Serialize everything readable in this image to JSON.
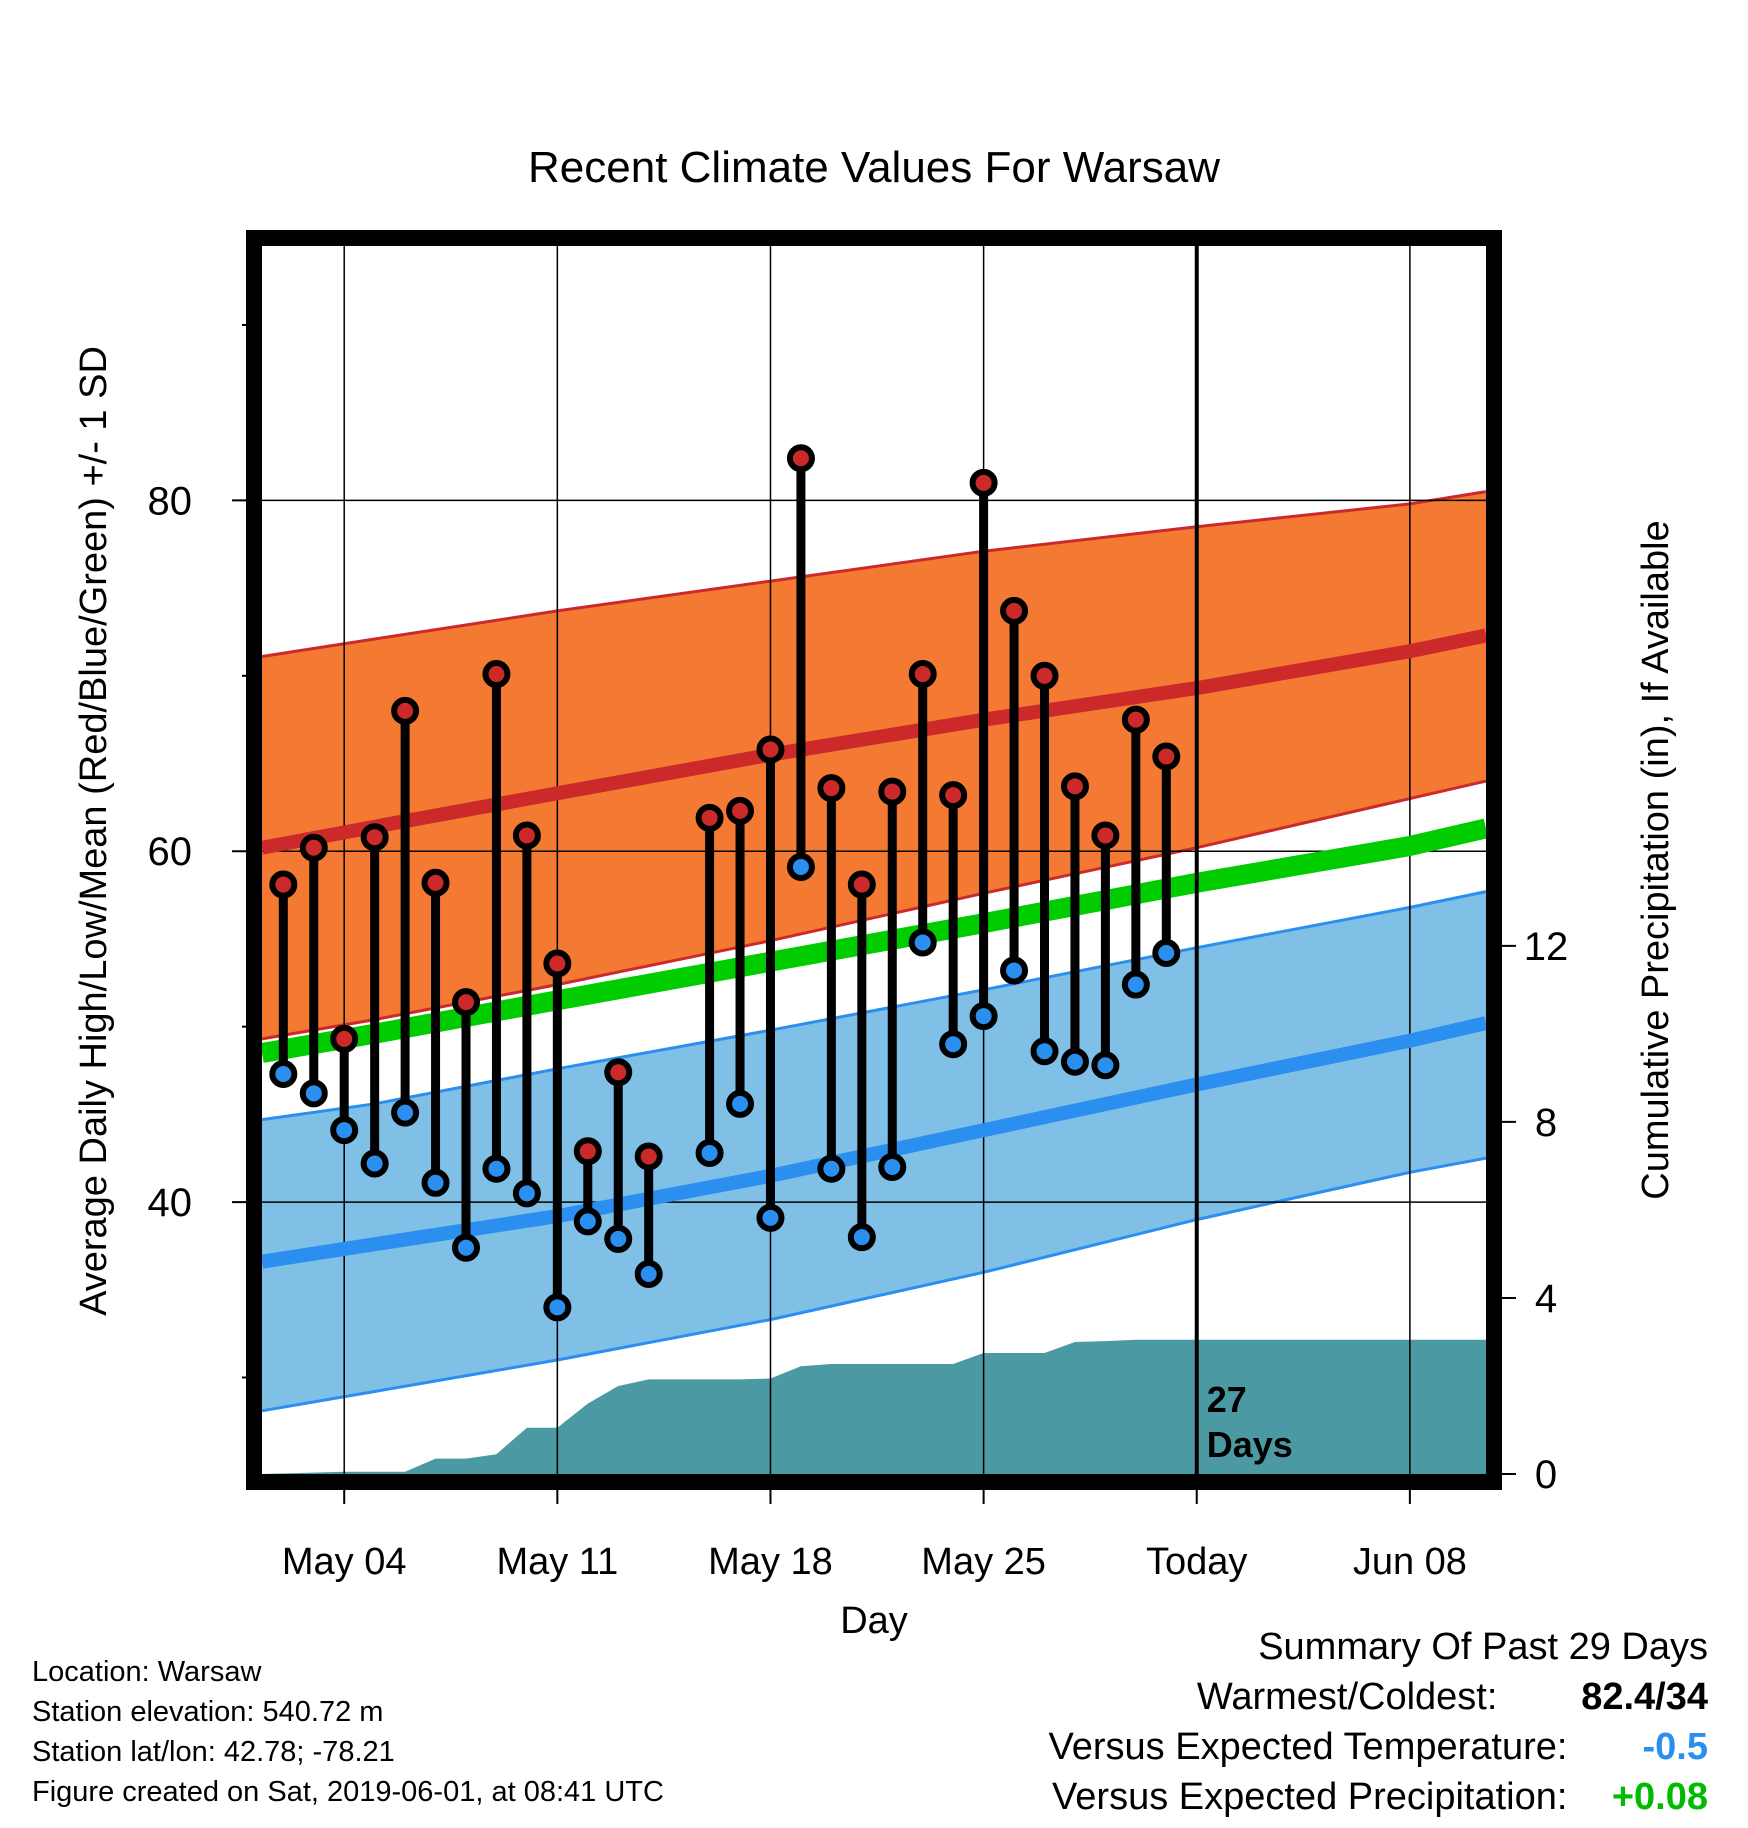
{
  "chart_data": {
    "type": "line",
    "title": "Recent Climate Values For Warsaw",
    "xlabel": "Day",
    "ylabel": "Average Daily High/Low/Mean (Red/Blue/Green) +/- 1 SD",
    "y2label": "Cumulative Precipitation (in), If Available",
    "xlim_days": [
      -30.7,
      9.5
    ],
    "ylim": [
      24.5,
      94.5
    ],
    "y_ticks": [
      80,
      60,
      40
    ],
    "y2lim": [
      0,
      27.9
    ],
    "y2_ticks": [
      0,
      4,
      8,
      12
    ],
    "x_ticks": [
      {
        "label": "May 04",
        "day": -28
      },
      {
        "label": "May 11",
        "day": -21
      },
      {
        "label": "May 18",
        "day": -14
      },
      {
        "label": "May 25",
        "day": -7
      },
      {
        "label": "Today",
        "day": 0
      },
      {
        "label": "Jun 08",
        "day": 7
      }
    ],
    "today_annotation": [
      "27",
      "Days"
    ],
    "normal_band": {
      "x": [
        -30.7,
        -27,
        -21,
        -14,
        -7,
        0,
        7,
        9.5
      ],
      "high_mean": [
        60.2,
        61.4,
        63.3,
        65.5,
        67.5,
        69.3,
        71.4,
        72.3
      ],
      "high_upper": [
        71.1,
        72.1,
        73.7,
        75.4,
        77.1,
        78.5,
        79.8,
        80.5
      ],
      "high_lower": [
        49.3,
        50.4,
        52.4,
        54.9,
        57.6,
        60.2,
        63.0,
        64.0
      ],
      "mean": [
        48.5,
        49.6,
        51.5,
        53.7,
        55.9,
        58.2,
        60.3,
        61.3
      ],
      "low_mean": [
        36.6,
        37.6,
        39.2,
        41.5,
        44.1,
        46.7,
        49.2,
        50.2
      ],
      "low_upper": [
        44.7,
        45.6,
        47.6,
        49.8,
        52.1,
        54.5,
        56.8,
        57.7
      ],
      "low_lower": [
        28.1,
        29.2,
        31.0,
        33.3,
        36.0,
        39.0,
        41.7,
        42.5
      ]
    },
    "series": [
      {
        "name": "High",
        "x": [
          -30,
          -29,
          -28,
          -27,
          -26,
          -25,
          -24,
          -23,
          -22,
          -21,
          -20,
          -19,
          -18,
          -16,
          -15,
          -14,
          -13,
          -12,
          -11,
          -10,
          -9,
          -8,
          -7,
          -6,
          -5,
          -4,
          -3,
          -2,
          -1
        ],
        "values": [
          58.1,
          60.2,
          49.3,
          60.8,
          68.0,
          58.2,
          51.4,
          70.1,
          60.9,
          53.6,
          42.9,
          47.4,
          42.6,
          61.9,
          62.3,
          65.8,
          82.4,
          63.6,
          58.1,
          63.4,
          70.1,
          63.2,
          81.0,
          73.7,
          70.0,
          63.7,
          60.9,
          67.5,
          65.4
        ]
      },
      {
        "name": "Low",
        "x": [
          -30,
          -29,
          -28,
          -27,
          -26,
          -25,
          -24,
          -23,
          -22,
          -21,
          -20,
          -19,
          -18,
          -16,
          -15,
          -14,
          -13,
          -12,
          -11,
          -10,
          -9,
          -8,
          -7,
          -6,
          -5,
          -4,
          -3,
          -2,
          -1
        ],
        "values": [
          47.3,
          46.2,
          44.1,
          42.2,
          45.1,
          41.1,
          37.4,
          41.9,
          40.5,
          34.0,
          38.9,
          37.9,
          35.9,
          42.8,
          45.6,
          39.1,
          59.1,
          41.9,
          38.0,
          42.0,
          54.8,
          49.0,
          50.6,
          53.2,
          48.6,
          48.0,
          47.8,
          52.4,
          54.2
        ]
      },
      {
        "name": "Precipitation",
        "x": [
          -30.7,
          -28,
          -27,
          -26,
          -25,
          -24,
          -23,
          -22,
          -21,
          -20,
          -19,
          -18,
          -17,
          -16,
          -15,
          -14,
          -13,
          -12,
          -11,
          -10,
          -9,
          -8,
          -7,
          -6,
          -5,
          -4,
          -3,
          -2,
          -1,
          0,
          9.5
        ],
        "values": [
          0,
          0.05,
          0.05,
          0.05,
          0.35,
          0.35,
          0.45,
          1.05,
          1.05,
          1.6,
          2.0,
          2.15,
          2.15,
          2.15,
          2.15,
          2.17,
          2.45,
          2.5,
          2.5,
          2.5,
          2.5,
          2.5,
          2.75,
          2.75,
          2.75,
          3.0,
          3.02,
          3.05,
          3.05,
          3.05,
          3.05
        ]
      }
    ]
  },
  "info": {
    "location": "Location: Warsaw",
    "elevation": "Station elevation: 540.72 m",
    "latlon": "Station lat/lon: 42.78; -78.21",
    "created": "Figure created on Sat, 2019-06-01, at 08:41 UTC"
  },
  "summary": {
    "title": "Summary Of Past 29 Days",
    "warm_cold_label": "Warmest/Coldest:",
    "warm_cold_value": "82.4/34",
    "temp_label": "Versus Expected Temperature:",
    "temp_value": "-0.5",
    "temp_color": "#2b8ff0",
    "precip_label": "Versus Expected Precipitation:",
    "precip_value": "+0.08",
    "precip_color": "#00bb00"
  },
  "colors": {
    "high_band": "#f47a33",
    "high_line": "#cc2a2a",
    "mean_line": "#00cc00",
    "low_band": "#80bfe6",
    "low_line": "#2b8ff0",
    "precip_fill": "#4b9aa3",
    "high_marker": "#cc2a2a",
    "low_marker": "#2b8ff0"
  }
}
